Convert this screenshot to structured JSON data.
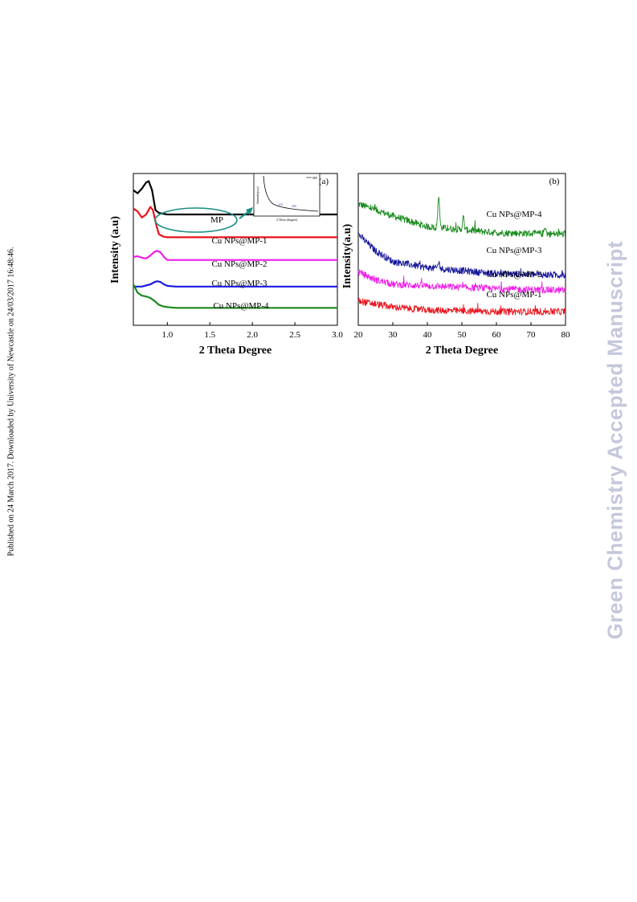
{
  "page": {
    "side_note": "Published on 24 March 2017. Downloaded by University of Newcastle on 24/03/2017 16:48:46.",
    "watermark": "Green Chemistry Accepted Manuscript"
  },
  "chart_data": [
    {
      "type": "line",
      "panel_label": "(a)",
      "xlabel": "2 Theta Degree",
      "ylabel": "Intensity (a.u)",
      "xlim": [
        0.6,
        3.0
      ],
      "xticks": [
        1.0,
        1.5,
        2.0,
        2.5,
        3.0
      ],
      "xtick_labels": [
        "1.0",
        "1.5",
        "2.0",
        "2.5",
        "3.0"
      ],
      "grid": false,
      "series": [
        {
          "name": "MP",
          "color": "#000000",
          "x": [
            0.6,
            0.65,
            0.7,
            0.75,
            0.78,
            0.82,
            0.86,
            0.9,
            0.95,
            1.0,
            1.2,
            1.5,
            2.0,
            2.5,
            3.0
          ],
          "y": [
            0.89,
            0.87,
            0.9,
            0.94,
            0.95,
            0.89,
            0.76,
            0.74,
            0.735,
            0.73,
            0.73,
            0.73,
            0.73,
            0.73,
            0.73
          ]
        },
        {
          "name": "Cu NPs@MP-1",
          "color": "#e8121b",
          "x": [
            0.6,
            0.65,
            0.7,
            0.75,
            0.8,
            0.83,
            0.87,
            0.9,
            0.95,
            1.0,
            1.2,
            1.5,
            2.0,
            2.5,
            3.0
          ],
          "y": [
            0.77,
            0.75,
            0.71,
            0.73,
            0.78,
            0.76,
            0.66,
            0.6,
            0.585,
            0.58,
            0.58,
            0.58,
            0.58,
            0.58,
            0.58
          ]
        },
        {
          "name": "Cu NPs@MP-2",
          "color": "#ef1ce8",
          "x": [
            0.6,
            0.65,
            0.7,
            0.75,
            0.8,
            0.85,
            0.88,
            0.92,
            0.96,
            1.0,
            1.1,
            1.3,
            1.6,
            2.0,
            2.5,
            3.0
          ],
          "y": [
            0.45,
            0.455,
            0.445,
            0.44,
            0.46,
            0.485,
            0.49,
            0.48,
            0.45,
            0.43,
            0.43,
            0.43,
            0.43,
            0.43,
            0.43,
            0.43
          ]
        },
        {
          "name": "Cu NPs@MP-3",
          "color": "#1a1ae6",
          "x": [
            0.6,
            0.7,
            0.8,
            0.85,
            0.88,
            0.92,
            0.96,
            1.0,
            1.1,
            1.3,
            1.6,
            2.0,
            2.5,
            3.0
          ],
          "y": [
            0.255,
            0.255,
            0.27,
            0.285,
            0.29,
            0.285,
            0.27,
            0.26,
            0.255,
            0.255,
            0.255,
            0.255,
            0.255,
            0.255
          ]
        },
        {
          "name": "Cu NPs@MP-4",
          "color": "#17891a",
          "x": [
            0.6,
            0.65,
            0.7,
            0.75,
            0.8,
            0.85,
            0.9,
            0.95,
            1.0,
            1.1,
            1.3,
            1.6,
            2.0,
            2.5,
            3.0
          ],
          "y": [
            0.27,
            0.215,
            0.195,
            0.19,
            0.18,
            0.16,
            0.135,
            0.125,
            0.12,
            0.115,
            0.115,
            0.115,
            0.115,
            0.115,
            0.115
          ]
        }
      ],
      "annotations": [
        "MP",
        "Cu NPs@MP-1",
        "Cu NPs@MP-2",
        "Cu NPs@MP-3",
        "Cu NPs@MP-4"
      ],
      "inset": {
        "xlabel": "2 Theta (degree)",
        "ylabel": "Intensity(a.u)",
        "legend": "MP",
        "peak_labels": [
          "110",
          "200"
        ]
      }
    },
    {
      "type": "line",
      "panel_label": "(b)",
      "xlabel": "2 Theta Degree",
      "ylabel": "Intensity(a.u)",
      "xlim": [
        20,
        80
      ],
      "xticks": [
        20,
        30,
        40,
        50,
        60,
        70,
        80
      ],
      "xtick_labels": [
        "20",
        "30",
        "40",
        "50",
        "60",
        "70",
        "80"
      ],
      "grid": false,
      "series": [
        {
          "name": "Cu NPs@MP-4",
          "color": "#17891a",
          "baseline": [
            [
              20,
              0.8
            ],
            [
              30,
              0.72
            ],
            [
              40,
              0.65
            ],
            [
              60,
              0.61
            ],
            [
              80,
              0.6
            ]
          ],
          "peaks": [
            [
              43.3,
              0.21
            ],
            [
              50.4,
              0.08
            ],
            [
              74.1,
              0.05
            ]
          ]
        },
        {
          "name": "Cu NPs@MP-3",
          "color": "#16169a",
          "baseline": [
            [
              20,
              0.6
            ],
            [
              25,
              0.49
            ],
            [
              30,
              0.42
            ],
            [
              40,
              0.38
            ],
            [
              60,
              0.34
            ],
            [
              80,
              0.33
            ]
          ],
          "peaks": [
            [
              43.3,
              0.04
            ]
          ]
        },
        {
          "name": "Cu NPs@MP-2",
          "color": "#ef1ce8",
          "baseline": [
            [
              20,
              0.35
            ],
            [
              25,
              0.3
            ],
            [
              30,
              0.27
            ],
            [
              40,
              0.26
            ],
            [
              60,
              0.24
            ],
            [
              80,
              0.23
            ]
          ],
          "peaks": []
        },
        {
          "name": "Cu NPs@MP-1",
          "color": "#e8121b",
          "baseline": [
            [
              20,
              0.16
            ],
            [
              25,
              0.14
            ],
            [
              30,
              0.12
            ],
            [
              40,
              0.1
            ],
            [
              60,
              0.09
            ],
            [
              80,
              0.09
            ]
          ],
          "peaks": []
        }
      ],
      "annotations": [
        "Cu NPs@MP-4",
        "Cu NPs@MP-3",
        "Cu NPs@MP-2",
        "Cu NPs@MP-1"
      ]
    }
  ]
}
